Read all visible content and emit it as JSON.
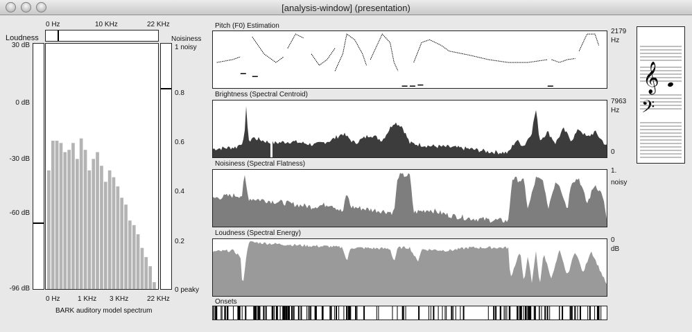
{
  "window": {
    "title": "[analysis-window] (presentation)"
  },
  "bark": {
    "top_freq_ticks": [
      "0 Hz",
      "10 KHz",
      "22 KHz"
    ],
    "bottom_freq_ticks": [
      "0 Hz",
      "1 KHz",
      "3 KHz",
      "22 KHz"
    ],
    "caption": "BARK auditory model spectrum",
    "bands": [
      0.52,
      0.65,
      0.65,
      0.64,
      0.6,
      0.61,
      0.64,
      0.57,
      0.66,
      0.61,
      0.52,
      0.57,
      0.6,
      0.54,
      0.47,
      0.52,
      0.49,
      0.45,
      0.4,
      0.37,
      0.3,
      0.28,
      0.24,
      0.18,
      0.14,
      0.1,
      0.03
    ]
  },
  "loudness_meter": {
    "label": "Loudness",
    "ticks": [
      "30 dB",
      "0 dB",
      "-30 dB",
      "-60 dB",
      "-96 dB"
    ],
    "level_db": -62
  },
  "noisiness_meter": {
    "label": "Noisiness",
    "ticks": [
      "1 noisy",
      "0.8",
      "0.6",
      "0.4",
      "0.2",
      "0 peaky"
    ],
    "level": 0.82
  },
  "pitch": {
    "title": "Pitch (F0) Estimation",
    "max_label": "2179",
    "unit": "Hz"
  },
  "brightness": {
    "title": "Brightness (Spectral Centroid)",
    "max_label": "7963",
    "unit": "Hz",
    "min_label": "0"
  },
  "noisiness": {
    "title": "Noisiness (Spectral Flatness)",
    "max_label": "1.",
    "unit": "noisy"
  },
  "loudness": {
    "title": "Loudness (Spectral Energy)",
    "max_label": "0",
    "unit": "dB"
  },
  "onsets": {
    "title": "Onsets"
  },
  "colors": {
    "brightness_fill": "#3c3c3c",
    "noisiness_fill": "#7e7e7e",
    "loudness_fill": "#9a9a9a",
    "bark_bar": "#b4b4b4"
  }
}
